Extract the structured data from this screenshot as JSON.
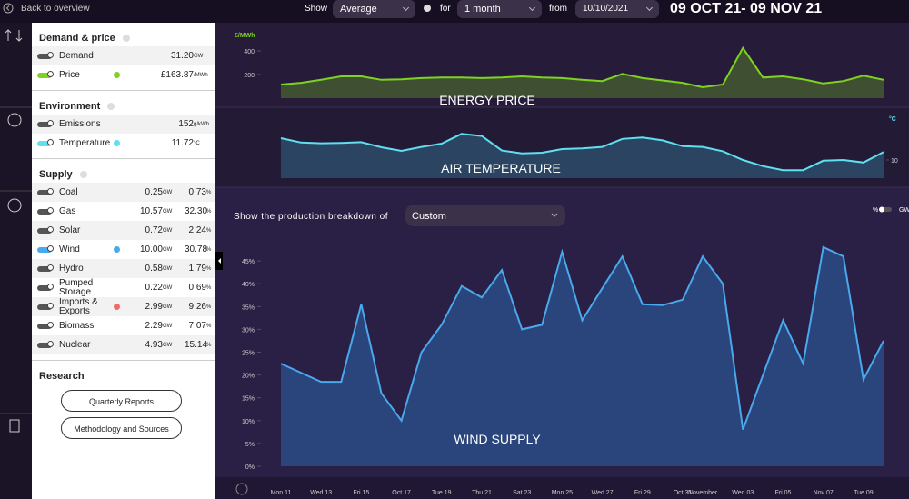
{
  "topbar": {
    "back": "Back to overview",
    "show_label": "Show",
    "show_value": "Average",
    "for_label": "for",
    "period": "1 month",
    "from_label": "from",
    "date": "10/10/2021",
    "range": "09 OCT 21- 09 NOV 21"
  },
  "sidebar": [
    {
      "title": "Demand & price",
      "items": [
        {
          "name": "Demand",
          "value": "31.20",
          "unit": "GW"
        },
        {
          "name": "Price",
          "value": "£163.87",
          "unit": "/MWh",
          "on": true,
          "color": "#7ed321"
        }
      ]
    },
    {
      "title": "Environment",
      "items": [
        {
          "name": "Emissions",
          "value": "152",
          "unit": "g/kWh"
        },
        {
          "name": "Temperature",
          "value": "11.72",
          "unit": "°C",
          "on": true,
          "color": "#5ee0f0"
        }
      ]
    },
    {
      "title": "Supply",
      "items": [
        {
          "name": "Coal",
          "value": "0.25",
          "unit": "GW",
          "pct": "0.73",
          "pct_unit": "%"
        },
        {
          "name": "Gas",
          "value": "10.57",
          "unit": "GW",
          "pct": "32.30",
          "pct_unit": "%"
        },
        {
          "name": "Solar",
          "value": "0.72",
          "unit": "GW",
          "pct": "2.24",
          "pct_unit": "%"
        },
        {
          "name": "Wind",
          "value": "10.00",
          "unit": "GW",
          "pct": "30.78",
          "pct_unit": "%",
          "on": true,
          "color": "#4aa8ec"
        },
        {
          "name": "Hydro",
          "value": "0.58",
          "unit": "GW",
          "pct": "1.79",
          "pct_unit": "%"
        },
        {
          "name": "Pumped Storage",
          "value": "0.22",
          "unit": "GW",
          "pct": "0.69",
          "pct_unit": "%"
        },
        {
          "name": "Imports & Exports",
          "value": "2.99",
          "unit": "GW",
          "pct": "9.26",
          "pct_unit": "%",
          "dot": "#f06a6a"
        },
        {
          "name": "Biomass",
          "value": "2.29",
          "unit": "GW",
          "pct": "7.07",
          "pct_unit": "%"
        },
        {
          "name": "Nuclear",
          "value": "4.93",
          "unit": "GW",
          "pct": "15.14",
          "pct_unit": "%"
        }
      ]
    }
  ],
  "research": {
    "title": "Research",
    "buttons": [
      "Quarterly Reports",
      "Methodology and Sources"
    ]
  },
  "breakdown": {
    "label": "Show the production breakdown of",
    "value": "Custom",
    "toggle": [
      "%",
      "GW"
    ]
  },
  "chart_data": [
    {
      "type": "area",
      "title": "ENERGY PRICE",
      "y_label": "£/MWh",
      "color": "#7ed321",
      "values": [
        115,
        130,
        155,
        185,
        185,
        155,
        160,
        170,
        175,
        175,
        170,
        175,
        185,
        175,
        170,
        155,
        145,
        205,
        170,
        150,
        130,
        92,
        115,
        425,
        175,
        185,
        160,
        125,
        145,
        190,
        155
      ],
      "ylim": [
        0,
        600
      ],
      "yticks": [
        200,
        400
      ]
    },
    {
      "type": "area",
      "title": "AIR TEMPERATURE",
      "y_label": "°C",
      "color": "#5ee0f0",
      "values": [
        16,
        14.8,
        14.6,
        14.7,
        14.9,
        13.5,
        12.5,
        13.6,
        14.5,
        17.2,
        16.6,
        12.6,
        11.8,
        12,
        13,
        13.2,
        13.6,
        15.8,
        16.2,
        15.4,
        13.8,
        13.6,
        12.4,
        10,
        8.3,
        7.2,
        7.2,
        9.8,
        10,
        9.3,
        12.2
      ],
      "ylim": [
        5,
        21.5
      ],
      "yticks": [
        10
      ]
    },
    {
      "type": "area",
      "title": "WIND SUPPLY",
      "color": "#4aa8ec",
      "categories": [
        "Mon 11",
        null,
        "Wed 13",
        null,
        "Fri 15",
        null,
        "Oct 17",
        null,
        "Tue 19",
        null,
        "Thu 21",
        null,
        "Sat 23",
        null,
        "Mon 25",
        null,
        "Wed 27",
        null,
        "Fri 29",
        null,
        "Oct 31",
        "November",
        null,
        "Wed 03",
        null,
        "Fri 05",
        null,
        "Nov 07",
        null,
        "Tue 09",
        null
      ],
      "values": [
        22.5,
        20.5,
        18.5,
        18.5,
        35.5,
        16,
        10,
        25,
        31,
        39.5,
        37,
        43,
        30,
        31,
        47,
        32,
        39,
        46,
        35.5,
        35.3,
        36.5,
        46,
        40,
        8,
        20,
        32,
        22.5,
        48,
        46,
        19,
        27.5
      ],
      "ylim": [
        0,
        50
      ],
      "yticks": [
        {
          "value": 0,
          "label": "0%"
        },
        {
          "value": 5,
          "label": "5%"
        },
        {
          "value": 10,
          "label": "10%"
        },
        {
          "value": 15,
          "label": "15%"
        },
        {
          "value": 20,
          "label": "20%"
        },
        {
          "value": 25,
          "label": "25%"
        },
        {
          "value": 30,
          "label": "30%"
        },
        {
          "value": 35,
          "label": "35%"
        },
        {
          "value": 40,
          "label": "40%"
        },
        {
          "value": 45,
          "label": "45%"
        }
      ]
    }
  ]
}
